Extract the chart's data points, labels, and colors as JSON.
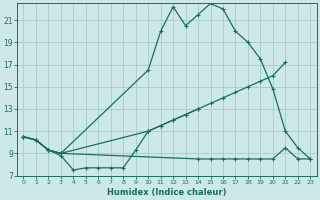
{
  "xlabel": "Humidex (Indice chaleur)",
  "bg_color": "#cce8e8",
  "grid_color": "#aacece",
  "line_color": "#1a6e60",
  "xlim": [
    -0.5,
    23.5
  ],
  "ylim": [
    7,
    22.5
  ],
  "yticks": [
    7,
    9,
    11,
    13,
    15,
    17,
    19,
    21
  ],
  "xticks": [
    0,
    1,
    2,
    3,
    4,
    5,
    6,
    7,
    8,
    9,
    10,
    11,
    12,
    13,
    14,
    15,
    16,
    17,
    18,
    19,
    20,
    21,
    22,
    23
  ],
  "line1_x": [
    0,
    1,
    2,
    3,
    10,
    11,
    12,
    13,
    14,
    15,
    16,
    17,
    18,
    19,
    20,
    21,
    22,
    23
  ],
  "line1_y": [
    10.5,
    10.2,
    9.3,
    9.0,
    16.5,
    20.0,
    22.2,
    20.5,
    21.5,
    22.5,
    22.0,
    20.0,
    19.0,
    17.5,
    14.8,
    11.0,
    9.5,
    8.5
  ],
  "line2_x": [
    0,
    1,
    2,
    3,
    10,
    11,
    12,
    13,
    14,
    15,
    16,
    17,
    18,
    19,
    20,
    21
  ],
  "line2_y": [
    10.5,
    10.2,
    9.3,
    9.0,
    11.0,
    11.5,
    12.0,
    12.5,
    13.0,
    13.5,
    14.0,
    14.5,
    15.0,
    15.5,
    16.0,
    17.2
  ],
  "line3_x": [
    0,
    1,
    2,
    3,
    4,
    5,
    6,
    7,
    8,
    9,
    10,
    11,
    12,
    13,
    14
  ],
  "line3_y": [
    10.5,
    10.2,
    9.3,
    8.8,
    7.5,
    7.7,
    7.7,
    7.7,
    7.7,
    9.3,
    11.0,
    11.5,
    12.0,
    12.5,
    13.0
  ],
  "line4_x": [
    0,
    1,
    2,
    3,
    14,
    15,
    16,
    17,
    18,
    19,
    20,
    21,
    22,
    23
  ],
  "line4_y": [
    10.5,
    10.2,
    9.3,
    9.0,
    8.5,
    8.5,
    8.5,
    8.5,
    8.5,
    8.5,
    8.5,
    9.5,
    8.5,
    8.5
  ]
}
